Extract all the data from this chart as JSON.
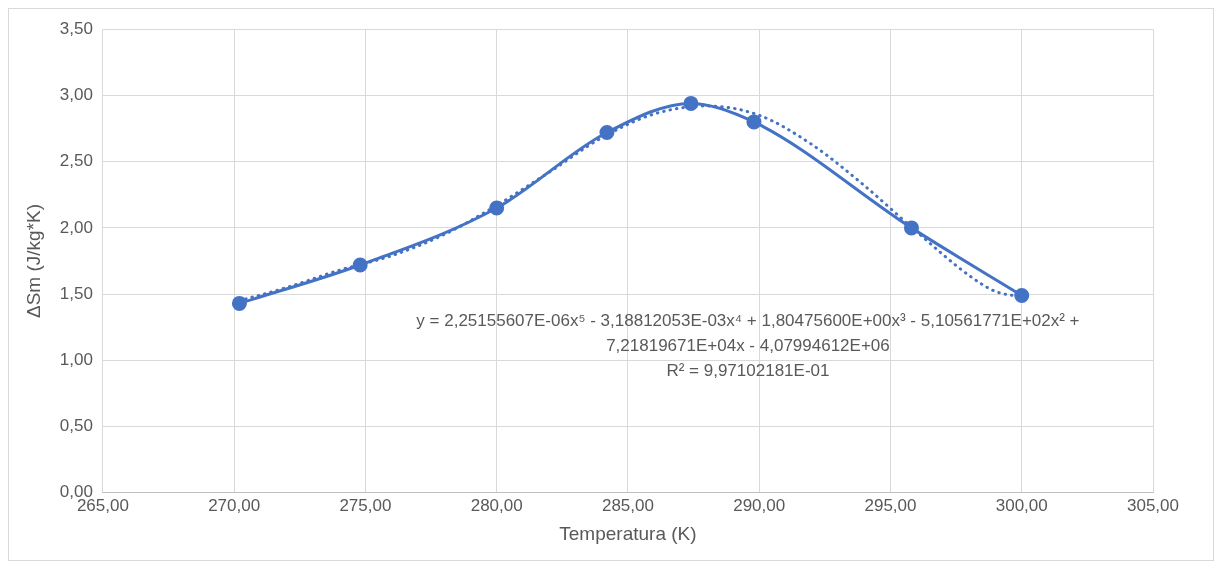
{
  "chart_data": {
    "type": "line",
    "xlabel": "Temperatura (K)",
    "ylabel": "ΔSm (J/kg*K)",
    "annotations": [
      "y = 2,25155607E-06x⁵ - 3,18812053E-03x⁴ + 1,80475600E+00x³ - 5,10561771E+02x² +\n7,21819671E+04x - 4,07994612E+06\nR² = 9,97102181E-01"
    ],
    "x": [
      270.2,
      274.8,
      280.0,
      284.2,
      287.4,
      289.8,
      295.8,
      300.0
    ],
    "series": [
      {
        "color": "#4472c4",
        "marker": "circle",
        "line_style": "solid",
        "values": [
          1.43,
          1.72,
          2.15,
          2.72,
          2.94,
          2.8,
          2.0,
          1.49
        ]
      },
      {
        "color": "#4472c4",
        "marker": "none",
        "line_style": "dotted",
        "x": [
          270.2,
          272,
          274,
          276,
          278,
          280,
          282,
          284,
          286,
          288,
          290,
          292,
          294,
          296,
          298,
          299,
          300
        ],
        "values": [
          1.45,
          1.55,
          1.68,
          1.79,
          1.95,
          2.17,
          2.42,
          2.68,
          2.86,
          2.92,
          2.85,
          2.63,
          2.32,
          1.97,
          1.64,
          1.52,
          1.48
        ]
      }
    ],
    "xlim": [
      265,
      305
    ],
    "xticks": [
      {
        "value": 265,
        "label": "265,00"
      },
      {
        "value": 270,
        "label": "270,00"
      },
      {
        "value": 275,
        "label": "275,00"
      },
      {
        "value": 280,
        "label": "280,00"
      },
      {
        "value": 285,
        "label": "285,00"
      },
      {
        "value": 290,
        "label": "290,00"
      },
      {
        "value": 295,
        "label": "295,00"
      },
      {
        "value": 300,
        "label": "300,00"
      },
      {
        "value": 305,
        "label": "305,00"
      }
    ],
    "ylim": [
      0,
      3.5
    ],
    "yticks": [
      {
        "value": 0,
        "label": "0,00"
      },
      {
        "value": 0.5,
        "label": "0,50"
      },
      {
        "value": 1,
        "label": "1,00"
      },
      {
        "value": 1.5,
        "label": "1,50"
      },
      {
        "value": 2,
        "label": "2,00"
      },
      {
        "value": 2.5,
        "label": "2,50"
      },
      {
        "value": 3,
        "label": "3,00"
      },
      {
        "value": 3.5,
        "label": "3,50"
      }
    ],
    "grid": true,
    "legend": false
  }
}
